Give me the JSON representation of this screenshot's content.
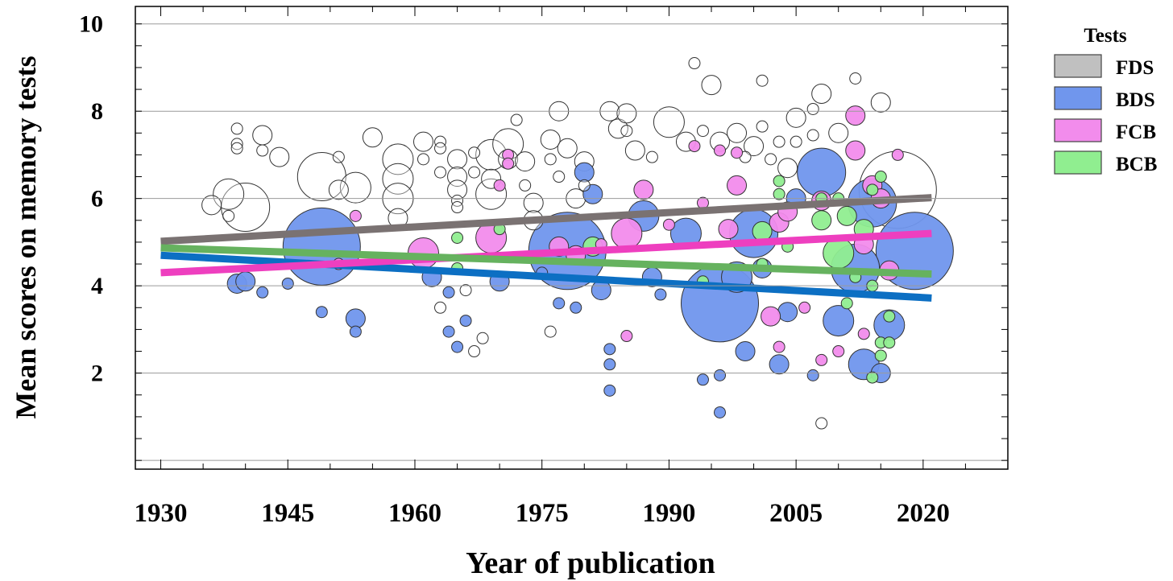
{
  "chart_data": {
    "type": "scatter",
    "subtype": "bubble-with-trend-lines",
    "title": "",
    "xlabel": "Year of publication",
    "ylabel": "Mean scores on memory tests",
    "xlim": [
      1927,
      2030
    ],
    "ylim": [
      -0.2,
      10.4
    ],
    "x_ticks": [
      1930,
      1945,
      1960,
      1975,
      1990,
      2005,
      2020
    ],
    "y_ticks": [
      2,
      4,
      6,
      8,
      10
    ],
    "grid": "horizontal",
    "legend": {
      "title": "Tests",
      "placement": "right",
      "entries": [
        "FDS",
        "BDS",
        "FCB",
        "BCB"
      ]
    },
    "series": [
      {
        "name": "FDS",
        "color": "#c0c0c0",
        "bubble_fill": "#ffffff",
        "line_color": "#7a7272",
        "trend": {
          "x": [
            1930,
            2021
          ],
          "y": [
            5.02,
            6.02
          ]
        },
        "points": [
          [
            1936,
            5.85,
            2
          ],
          [
            1938,
            6.1,
            3
          ],
          [
            1938,
            5.6,
            1
          ],
          [
            1940,
            5.8,
            4
          ],
          [
            1939,
            7.6,
            1
          ],
          [
            1939,
            7.25,
            1
          ],
          [
            1939,
            7.15,
            1
          ],
          [
            1942,
            7.45,
            2
          ],
          [
            1942,
            7.1,
            1
          ],
          [
            1944,
            6.95,
            2
          ],
          [
            1949,
            6.5,
            4
          ],
          [
            1951,
            6.95,
            1
          ],
          [
            1951,
            6.2,
            2
          ],
          [
            1953,
            6.25,
            3
          ],
          [
            1955,
            7.4,
            2
          ],
          [
            1958,
            6.9,
            3
          ],
          [
            1958,
            6.45,
            3
          ],
          [
            1958,
            6.0,
            3
          ],
          [
            1958,
            5.55,
            2
          ],
          [
            1961,
            7.3,
            2
          ],
          [
            1961,
            6.9,
            1
          ],
          [
            1963,
            7.3,
            1
          ],
          [
            1963,
            7.15,
            1
          ],
          [
            1963,
            6.6,
            1
          ],
          [
            1965,
            6.9,
            2
          ],
          [
            1965,
            6.5,
            2
          ],
          [
            1965,
            6.2,
            2
          ],
          [
            1965,
            5.95,
            1
          ],
          [
            1965,
            5.8,
            1
          ],
          [
            1967,
            7.05,
            1
          ],
          [
            1967,
            6.6,
            1
          ],
          [
            1969,
            7.0,
            3
          ],
          [
            1969,
            6.45,
            2
          ],
          [
            1969,
            6.1,
            3
          ],
          [
            1971,
            7.25,
            3
          ],
          [
            1971,
            6.9,
            2
          ],
          [
            1972,
            7.8,
            1
          ],
          [
            1973,
            6.85,
            2
          ],
          [
            1973,
            6.3,
            1
          ],
          [
            1974,
            5.9,
            2
          ],
          [
            1976,
            7.35,
            2
          ],
          [
            1976,
            6.9,
            1
          ],
          [
            1977,
            8.0,
            2
          ],
          [
            1977,
            6.5,
            1
          ],
          [
            1978,
            7.15,
            2
          ],
          [
            1979,
            6.0,
            2
          ],
          [
            1980,
            6.85,
            2
          ],
          [
            1980,
            6.3,
            1
          ],
          [
            1983,
            8.0,
            2
          ],
          [
            1984,
            7.6,
            2
          ],
          [
            1985,
            7.95,
            2
          ],
          [
            1985,
            7.55,
            1
          ],
          [
            1986,
            7.1,
            2
          ],
          [
            1988,
            6.95,
            1
          ],
          [
            1990,
            7.75,
            3
          ],
          [
            1992,
            7.3,
            2
          ],
          [
            1993,
            9.1,
            1
          ],
          [
            1994,
            7.55,
            1
          ],
          [
            1995,
            8.6,
            2
          ],
          [
            1996,
            7.3,
            2
          ],
          [
            1998,
            7.5,
            2
          ],
          [
            1999,
            6.95,
            1
          ],
          [
            2000,
            7.2,
            2
          ],
          [
            2001,
            8.7,
            1
          ],
          [
            2001,
            7.65,
            1
          ],
          [
            2002,
            6.9,
            1
          ],
          [
            2003,
            7.3,
            1
          ],
          [
            2004,
            6.7,
            2
          ],
          [
            2005,
            7.85,
            2
          ],
          [
            2005,
            7.3,
            1
          ],
          [
            2007,
            7.45,
            1
          ],
          [
            2007,
            8.05,
            1
          ],
          [
            2008,
            8.4,
            2
          ],
          [
            2010,
            7.5,
            2
          ],
          [
            2012,
            8.75,
            1
          ],
          [
            2015,
            8.2,
            2
          ],
          [
            2017,
            6.2,
            5
          ],
          [
            2008,
            0.85,
            1
          ],
          [
            1976,
            2.95,
            1
          ],
          [
            1968,
            2.8,
            1
          ],
          [
            1967,
            2.5,
            1
          ],
          [
            1963,
            3.5,
            1
          ],
          [
            1966,
            3.9,
            1
          ],
          [
            1974,
            5.5,
            2
          ]
        ]
      },
      {
        "name": "BDS",
        "color": "#7096ed",
        "bubble_fill": "#7096ed",
        "line_color": "#0c6fc3",
        "trend": {
          "x": [
            1930,
            2021
          ],
          "y": [
            4.7,
            3.72
          ]
        },
        "points": [
          [
            1939,
            4.05,
            2
          ],
          [
            1940,
            4.1,
            2
          ],
          [
            1942,
            3.85,
            1
          ],
          [
            1945,
            4.05,
            1
          ],
          [
            1949,
            4.9,
            5
          ],
          [
            1949,
            3.4,
            1
          ],
          [
            1953,
            3.25,
            2
          ],
          [
            1953,
            2.95,
            1
          ],
          [
            1962,
            4.2,
            2
          ],
          [
            1964,
            3.85,
            1
          ],
          [
            1964,
            2.95,
            1
          ],
          [
            1966,
            3.2,
            1
          ],
          [
            1965,
            2.6,
            1
          ],
          [
            1970,
            4.1,
            2
          ],
          [
            1975,
            4.3,
            1
          ],
          [
            1977,
            3.6,
            1
          ],
          [
            1978,
            4.8,
            5
          ],
          [
            1979,
            3.5,
            1
          ],
          [
            1980,
            6.6,
            2
          ],
          [
            1981,
            6.1,
            2
          ],
          [
            1982,
            3.9,
            2
          ],
          [
            1983,
            2.55,
            1
          ],
          [
            1983,
            2.2,
            1
          ],
          [
            1983,
            1.6,
            1
          ],
          [
            1987,
            5.6,
            3
          ],
          [
            1988,
            4.2,
            2
          ],
          [
            1989,
            3.8,
            1
          ],
          [
            1992,
            5.2,
            3
          ],
          [
            1996,
            3.6,
            5
          ],
          [
            1998,
            4.2,
            3
          ],
          [
            1999,
            2.5,
            2
          ],
          [
            1996,
            1.1,
            1
          ],
          [
            1996,
            1.95,
            1
          ],
          [
            1994,
            1.85,
            1
          ],
          [
            2003,
            2.2,
            2
          ],
          [
            2004,
            3.4,
            2
          ],
          [
            2008,
            6.6,
            4
          ],
          [
            2010,
            3.2,
            3
          ],
          [
            2012,
            4.4,
            4
          ],
          [
            2013,
            2.2,
            3
          ],
          [
            2015,
            2.0,
            2
          ],
          [
            2016,
            3.1,
            3
          ],
          [
            2014,
            5.9,
            4
          ],
          [
            2019,
            4.8,
            5
          ],
          [
            2000,
            5.2,
            4
          ],
          [
            2005,
            6.0,
            2
          ],
          [
            2001,
            4.4,
            2
          ],
          [
            2007,
            1.95,
            1
          ]
        ]
      },
      {
        "name": "FCB",
        "color": "#f28cec",
        "bubble_fill": "#f28cec",
        "line_color": "#ee3fbf",
        "trend": {
          "x": [
            1930,
            2021
          ],
          "y": [
            4.3,
            5.2
          ]
        },
        "points": [
          [
            1951,
            4.5,
            1
          ],
          [
            1953,
            5.6,
            1
          ],
          [
            1961,
            4.75,
            3
          ],
          [
            1969,
            5.1,
            3
          ],
          [
            1970,
            6.3,
            1
          ],
          [
            1971,
            7.0,
            1
          ],
          [
            1971,
            6.8,
            1
          ],
          [
            1977,
            4.9,
            2
          ],
          [
            1979,
            4.7,
            2
          ],
          [
            1982,
            4.95,
            1
          ],
          [
            1985,
            5.2,
            3
          ],
          [
            1985,
            2.85,
            1
          ],
          [
            1987,
            6.2,
            2
          ],
          [
            1990,
            5.4,
            1
          ],
          [
            1993,
            7.2,
            1
          ],
          [
            1994,
            5.9,
            1
          ],
          [
            1996,
            7.1,
            1
          ],
          [
            1997,
            5.3,
            2
          ],
          [
            1998,
            6.3,
            2
          ],
          [
            1998,
            7.05,
            1
          ],
          [
            2002,
            3.3,
            2
          ],
          [
            2003,
            5.45,
            2
          ],
          [
            2003,
            2.6,
            1
          ],
          [
            2004,
            5.7,
            2
          ],
          [
            2006,
            3.5,
            1
          ],
          [
            2008,
            5.95,
            2
          ],
          [
            2008,
            2.3,
            1
          ],
          [
            2012,
            7.9,
            2
          ],
          [
            2012,
            7.1,
            2
          ],
          [
            2013,
            4.95,
            2
          ],
          [
            2014,
            6.3,
            2
          ],
          [
            2015,
            6.0,
            2
          ],
          [
            2016,
            4.35,
            2
          ],
          [
            2017,
            7.0,
            1
          ],
          [
            2010,
            2.5,
            1
          ],
          [
            2013,
            2.9,
            1
          ]
        ]
      },
      {
        "name": "BCB",
        "color": "#90ee90",
        "bubble_fill": "#90ee90",
        "line_color": "#66b25f",
        "trend": {
          "x": [
            1930,
            2021
          ],
          "y": [
            4.87,
            4.27
          ]
        },
        "points": [
          [
            1965,
            5.1,
            1
          ],
          [
            1965,
            4.4,
            1
          ],
          [
            1970,
            5.3,
            1
          ],
          [
            1981,
            4.9,
            2
          ],
          [
            1994,
            4.1,
            1
          ],
          [
            2001,
            5.25,
            2
          ],
          [
            2001,
            4.5,
            1
          ],
          [
            2003,
            6.1,
            1
          ],
          [
            2003,
            6.4,
            1
          ],
          [
            2004,
            4.9,
            1
          ],
          [
            2008,
            5.5,
            2
          ],
          [
            2008,
            6.0,
            1
          ],
          [
            2010,
            4.75,
            3
          ],
          [
            2011,
            5.6,
            2
          ],
          [
            2011,
            3.6,
            1
          ],
          [
            2012,
            4.2,
            1
          ],
          [
            2013,
            5.3,
            2
          ],
          [
            2014,
            6.2,
            1
          ],
          [
            2014,
            4.0,
            1
          ],
          [
            2015,
            2.4,
            1
          ],
          [
            2015,
            2.7,
            1
          ],
          [
            2015,
            6.5,
            1
          ],
          [
            2016,
            3.3,
            1
          ],
          [
            2016,
            2.7,
            1
          ],
          [
            2010,
            6.0,
            1
          ],
          [
            2014,
            1.9,
            1
          ]
        ]
      }
    ]
  }
}
